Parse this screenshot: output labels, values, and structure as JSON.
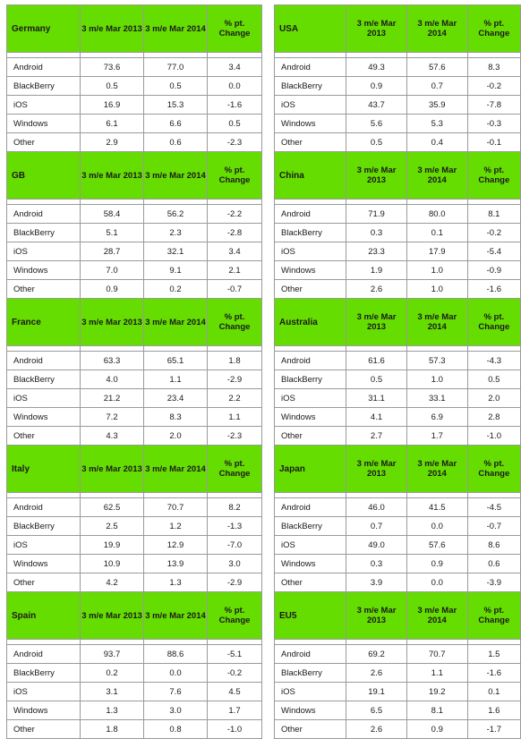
{
  "headers": {
    "prev": "3 m/e Mar 2013",
    "curr": "3 m/e Mar 2014",
    "change": "% pt. Change"
  },
  "left": [
    {
      "country": "Germany",
      "rows": [
        {
          "os": "Android",
          "prev": "73.6",
          "curr": "77.0",
          "change": "3.4"
        },
        {
          "os": "BlackBerry",
          "prev": "0.5",
          "curr": "0.5",
          "change": "0.0"
        },
        {
          "os": "iOS",
          "prev": "16.9",
          "curr": "15.3",
          "change": "-1.6"
        },
        {
          "os": "Windows",
          "prev": "6.1",
          "curr": "6.6",
          "change": "0.5"
        },
        {
          "os": "Other",
          "prev": "2.9",
          "curr": "0.6",
          "change": "-2.3"
        }
      ]
    },
    {
      "country": "GB",
      "rows": [
        {
          "os": "Android",
          "prev": "58.4",
          "curr": "56.2",
          "change": "-2.2"
        },
        {
          "os": "BlackBerry",
          "prev": "5.1",
          "curr": "2.3",
          "change": "-2.8"
        },
        {
          "os": "iOS",
          "prev": "28.7",
          "curr": "32.1",
          "change": "3.4"
        },
        {
          "os": "Windows",
          "prev": "7.0",
          "curr": "9.1",
          "change": "2.1"
        },
        {
          "os": "Other",
          "prev": "0.9",
          "curr": "0.2",
          "change": "-0.7"
        }
      ]
    },
    {
      "country": "France",
      "rows": [
        {
          "os": "Android",
          "prev": "63.3",
          "curr": "65.1",
          "change": "1.8"
        },
        {
          "os": "BlackBerry",
          "prev": "4.0",
          "curr": "1.1",
          "change": "-2.9"
        },
        {
          "os": "iOS",
          "prev": "21.2",
          "curr": "23.4",
          "change": "2.2"
        },
        {
          "os": "Windows",
          "prev": "7.2",
          "curr": "8.3",
          "change": "1.1"
        },
        {
          "os": "Other",
          "prev": "4.3",
          "curr": "2.0",
          "change": "-2.3"
        }
      ]
    },
    {
      "country": "Italy",
      "rows": [
        {
          "os": "Android",
          "prev": "62.5",
          "curr": "70.7",
          "change": "8.2"
        },
        {
          "os": "BlackBerry",
          "prev": "2.5",
          "curr": "1.2",
          "change": "-1.3"
        },
        {
          "os": "iOS",
          "prev": "19.9",
          "curr": "12.9",
          "change": "-7.0"
        },
        {
          "os": "Windows",
          "prev": "10.9",
          "curr": "13.9",
          "change": "3.0"
        },
        {
          "os": "Other",
          "prev": "4.2",
          "curr": "1.3",
          "change": "-2.9"
        }
      ]
    },
    {
      "country": "Spain",
      "rows": [
        {
          "os": "Android",
          "prev": "93.7",
          "curr": "88.6",
          "change": "-5.1"
        },
        {
          "os": "BlackBerry",
          "prev": "0.2",
          "curr": "0.0",
          "change": "-0.2"
        },
        {
          "os": "iOS",
          "prev": "3.1",
          "curr": "7.6",
          "change": "4.5"
        },
        {
          "os": "Windows",
          "prev": "1.3",
          "curr": "3.0",
          "change": "1.7"
        },
        {
          "os": "Other",
          "prev": "1.8",
          "curr": "0.8",
          "change": "-1.0"
        }
      ]
    }
  ],
  "right": [
    {
      "country": "USA",
      "rows": [
        {
          "os": "Android",
          "prev": "49.3",
          "curr": "57.6",
          "change": "8.3"
        },
        {
          "os": "BlackBerry",
          "prev": "0.9",
          "curr": "0.7",
          "change": "-0.2"
        },
        {
          "os": "iOS",
          "prev": "43.7",
          "curr": "35.9",
          "change": "-7.8"
        },
        {
          "os": "Windows",
          "prev": "5.6",
          "curr": "5.3",
          "change": "-0.3"
        },
        {
          "os": "Other",
          "prev": "0.5",
          "curr": "0.4",
          "change": "-0.1"
        }
      ]
    },
    {
      "country": "China",
      "rows": [
        {
          "os": "Android",
          "prev": "71.9",
          "curr": "80.0",
          "change": "8.1"
        },
        {
          "os": "BlackBerry",
          "prev": "0.3",
          "curr": "0.1",
          "change": "-0.2"
        },
        {
          "os": "iOS",
          "prev": "23.3",
          "curr": "17.9",
          "change": "-5.4"
        },
        {
          "os": "Windows",
          "prev": "1.9",
          "curr": "1.0",
          "change": "-0.9"
        },
        {
          "os": "Other",
          "prev": "2.6",
          "curr": "1.0",
          "change": "-1.6"
        }
      ]
    },
    {
      "country": "Australia",
      "rows": [
        {
          "os": "Android",
          "prev": "61.6",
          "curr": "57.3",
          "change": "-4.3"
        },
        {
          "os": "BlackBerry",
          "prev": "0.5",
          "curr": "1.0",
          "change": "0.5"
        },
        {
          "os": "iOS",
          "prev": "31.1",
          "curr": "33.1",
          "change": "2.0"
        },
        {
          "os": "Windows",
          "prev": "4.1",
          "curr": "6.9",
          "change": "2.8"
        },
        {
          "os": "Other",
          "prev": "2.7",
          "curr": "1.7",
          "change": "-1.0"
        }
      ]
    },
    {
      "country": "Japan",
      "rows": [
        {
          "os": "Android",
          "prev": "46.0",
          "curr": "41.5",
          "change": "-4.5"
        },
        {
          "os": "BlackBerry",
          "prev": "0.7",
          "curr": "0.0",
          "change": "-0.7"
        },
        {
          "os": "iOS",
          "prev": "49.0",
          "curr": "57.6",
          "change": "8.6"
        },
        {
          "os": "Windows",
          "prev": "0.3",
          "curr": "0.9",
          "change": "0.6"
        },
        {
          "os": "Other",
          "prev": "3.9",
          "curr": "0.0",
          "change": "-3.9"
        }
      ]
    },
    {
      "country": "EU5",
      "rows": [
        {
          "os": "Android",
          "prev": "69.2",
          "curr": "70.7",
          "change": "1.5"
        },
        {
          "os": "BlackBerry",
          "prev": "2.6",
          "curr": "1.1",
          "change": "-1.6"
        },
        {
          "os": "iOS",
          "prev": "19.1",
          "curr": "19.2",
          "change": "0.1"
        },
        {
          "os": "Windows",
          "prev": "6.5",
          "curr": "8.1",
          "change": "1.6"
        },
        {
          "os": "Other",
          "prev": "2.6",
          "curr": "0.9",
          "change": "-1.7"
        }
      ]
    }
  ]
}
